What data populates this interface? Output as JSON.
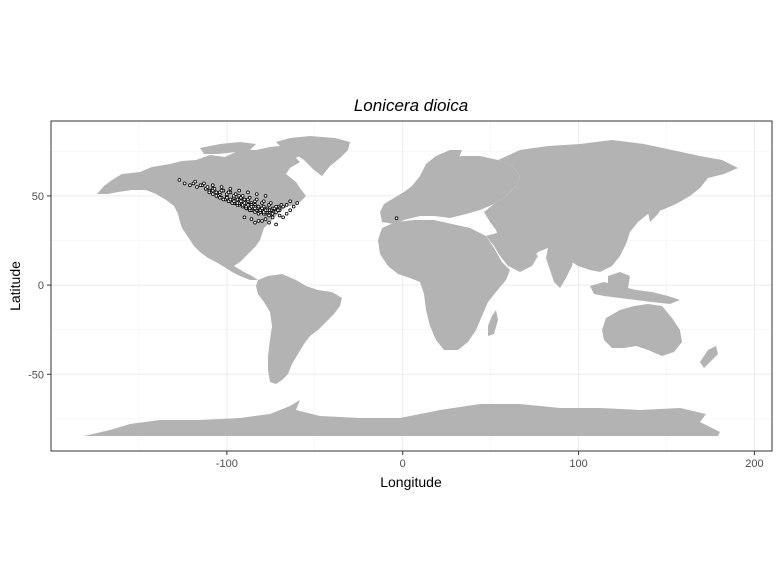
{
  "chart_data": {
    "type": "scatter",
    "title": "Lonicera dioica",
    "xlabel": "Longitude",
    "ylabel": "Latitude",
    "xlim": [
      -200,
      210
    ],
    "ylim": [
      -93,
      92
    ],
    "x_ticks": [
      -100,
      0,
      100,
      200
    ],
    "x_tick_labels": [
      "-100",
      "0",
      "100",
      "200"
    ],
    "y_ticks": [
      -50,
      0,
      50
    ],
    "y_tick_labels": [
      "-50",
      "0",
      "50"
    ],
    "grid": true,
    "legend": "none",
    "colors": {
      "land": "#b3b3b3",
      "points_fill": "#ffffff",
      "points_stroke": "#000000",
      "grid": "#ebebeb",
      "panel_border": "#333333"
    },
    "series": [
      {
        "x": [
          -127,
          -124,
          -121,
          -119,
          -117,
          -114,
          -112,
          -110,
          -108,
          -106,
          -104,
          -102,
          -100,
          -98,
          -96,
          -95,
          -94,
          -93,
          -92,
          -91,
          -90,
          -89,
          -88,
          -87,
          -86,
          -85,
          -84,
          -83,
          -82,
          -81,
          -80,
          -79,
          -78,
          -77,
          -76,
          -75,
          -74,
          -73,
          -72,
          -71,
          -70,
          -69,
          -68,
          -90,
          -88,
          -86,
          -84,
          -82,
          -80,
          -78,
          -76,
          -74,
          -72,
          -70,
          -95,
          -93,
          -91,
          -89,
          -87,
          -85,
          -83,
          -81,
          -79,
          -77,
          -75,
          -73,
          -71,
          -100,
          -98,
          -96,
          -94,
          -92,
          -90,
          -88,
          -86,
          -84,
          -82,
          -80,
          -78,
          -76,
          -74,
          -105,
          -103,
          -101,
          -99,
          -97,
          -95,
          -93,
          -91,
          -89,
          -87,
          -85,
          -83,
          -81,
          -79,
          -77,
          -110,
          -108,
          -106,
          -104,
          -102,
          -100,
          -98,
          -96,
          -94,
          -92,
          -90,
          -88,
          -86,
          -84,
          -82,
          -80,
          -78,
          -112,
          -108,
          -104,
          -100,
          -96,
          -92,
          -88,
          -84,
          -80,
          -76,
          -72,
          -115,
          -111,
          -107,
          -103,
          -99,
          -95,
          -91,
          -87,
          -83,
          -79,
          -75,
          -118,
          -113,
          -108,
          -103,
          -98,
          -93,
          -88,
          -83,
          -78,
          -90,
          -86,
          -82,
          -78,
          -74,
          -70,
          -66,
          -64,
          -62,
          -60,
          -84,
          -80,
          -76,
          -72,
          -68,
          -66,
          -64,
          -3.5
        ],
        "y": [
          59,
          57,
          56,
          57,
          55,
          56,
          54,
          53,
          54,
          52,
          51,
          53,
          50,
          52,
          49,
          51,
          48,
          50,
          49,
          47,
          48,
          46,
          47,
          45,
          46,
          44,
          45,
          43,
          44,
          42,
          43,
          44,
          42,
          43,
          41,
          42,
          43,
          41,
          42,
          44,
          43,
          45,
          44,
          44,
          43,
          42,
          41,
          40,
          41,
          40,
          39,
          40,
          41,
          42,
          46,
          45,
          44,
          43,
          42,
          43,
          42,
          41,
          40,
          41,
          42,
          43,
          42,
          48,
          47,
          46,
          45,
          46,
          45,
          44,
          45,
          44,
          43,
          42,
          41,
          42,
          40,
          50,
          49,
          48,
          47,
          46,
          47,
          46,
          45,
          44,
          43,
          44,
          43,
          42,
          41,
          42,
          52,
          51,
          50,
          49,
          48,
          49,
          48,
          47,
          46,
          47,
          46,
          45,
          44,
          43,
          44,
          43,
          42,
          54,
          53,
          52,
          51,
          50,
          49,
          48,
          47,
          46,
          45,
          44,
          56,
          55,
          54,
          53,
          52,
          51,
          50,
          49,
          48,
          47,
          46,
          58,
          57,
          56,
          55,
          54,
          53,
          52,
          51,
          50,
          38,
          37,
          36,
          37,
          38,
          39,
          40,
          42,
          44,
          46,
          35,
          36,
          35,
          34,
          38,
          45,
          47,
          37.5
        ]
      }
    ]
  }
}
